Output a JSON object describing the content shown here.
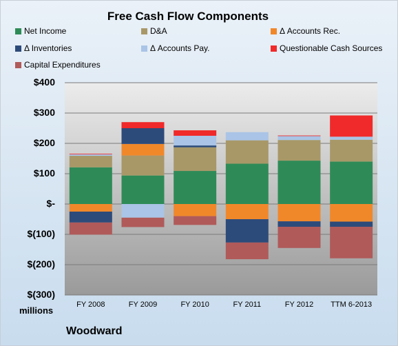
{
  "chart_data": {
    "type": "bar",
    "stacked": true,
    "title": "Free Cash Flow Components",
    "unit_label": "millions",
    "company": "Woodward",
    "categories": [
      "FY 2008",
      "FY 2009",
      "FY 2010",
      "FY 2011",
      "FY 2012",
      "TTM 6-2013"
    ],
    "ylim": [
      -300,
      400
    ],
    "yticks": [
      400,
      300,
      200,
      100,
      0,
      -100,
      -200,
      -300
    ],
    "ytick_labels": [
      "$400",
      "$300",
      "$200",
      "$100",
      "$-",
      "$(100)",
      "$(200)",
      "$(300)"
    ],
    "legend_placement": "top",
    "series": [
      {
        "name": "Net Income",
        "color": "#2e8b57",
        "values": [
          121,
          94,
          109,
          133,
          143,
          140
        ]
      },
      {
        "name": "D&A",
        "color": "#a89868",
        "values": [
          38,
          66,
          78,
          77,
          68,
          72
        ]
      },
      {
        "name": "Δ Accounts Rec.",
        "color": "#f0882a",
        "values": [
          -25,
          38,
          -40,
          -50,
          -57,
          -58
        ]
      },
      {
        "name": "Δ Inventories",
        "color": "#2d4b7a",
        "values": [
          -36,
          52,
          6,
          -77,
          -18,
          -17
        ]
      },
      {
        "name": "Δ Accounts Pay.",
        "color": "#a9c4e6",
        "values": [
          5,
          -45,
          32,
          27,
          13,
          10
        ]
      },
      {
        "name": "Questionable Cash Sources",
        "color": "#f02a2a",
        "values": [
          2,
          20,
          18,
          0,
          2,
          70
        ]
      },
      {
        "name": "Capital Expenditures",
        "color": "#b05a5a",
        "values": [
          -40,
          -31,
          -29,
          -55,
          -70,
          -104
        ]
      }
    ]
  }
}
